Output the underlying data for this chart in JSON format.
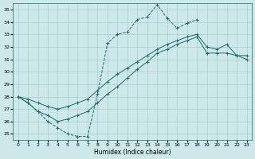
{
  "xlabel": "Humidex (Indice chaleur)",
  "bg_color": "#cce8e8",
  "grid_color": "#aacccc",
  "line_color": "#1a6b6b",
  "xlim": [
    -0.5,
    23.5
  ],
  "ylim": [
    24.5,
    35.5
  ],
  "yticks": [
    25,
    26,
    27,
    28,
    29,
    30,
    31,
    32,
    33,
    34,
    35
  ],
  "xticks": [
    0,
    1,
    2,
    3,
    4,
    5,
    6,
    7,
    8,
    9,
    10,
    11,
    12,
    13,
    14,
    15,
    16,
    17,
    18,
    19,
    20,
    21,
    22,
    23
  ],
  "line1_x": [
    0,
    1,
    2,
    3,
    4,
    5,
    6,
    7,
    8,
    9,
    10,
    11,
    12,
    13,
    14,
    15,
    16,
    17,
    18
  ],
  "line1_y": [
    28.0,
    27.5,
    26.8,
    26.0,
    25.5,
    25.0,
    24.8,
    24.8,
    28.2,
    32.3,
    33.0,
    33.2,
    34.2,
    34.4,
    35.4,
    34.3,
    33.5,
    33.9,
    34.2
  ],
  "line1_style": "--",
  "line2_x": [
    0,
    1,
    2,
    3,
    4,
    5,
    6,
    7,
    8,
    9,
    10,
    11,
    12,
    13,
    14,
    15,
    16,
    17,
    18,
    19,
    20,
    21,
    22,
    23
  ],
  "line2_y": [
    28.0,
    27.8,
    27.5,
    27.2,
    27.0,
    27.2,
    27.5,
    27.8,
    28.5,
    29.2,
    29.8,
    30.3,
    30.8,
    31.3,
    31.8,
    32.2,
    32.5,
    32.8,
    33.0,
    32.0,
    31.8,
    32.2,
    31.3,
    31.3
  ],
  "line2_style": "-",
  "line3_x": [
    0,
    1,
    2,
    3,
    4,
    5,
    6,
    7,
    8,
    9,
    10,
    11,
    12,
    13,
    14,
    15,
    16,
    17,
    18,
    19,
    20,
    21,
    22,
    23
  ],
  "line3_y": [
    28.0,
    27.5,
    26.8,
    26.5,
    26.0,
    26.2,
    26.5,
    26.8,
    27.5,
    28.2,
    28.8,
    29.5,
    30.2,
    30.8,
    31.5,
    31.8,
    32.2,
    32.5,
    32.8,
    31.5,
    31.5,
    31.5,
    31.3,
    31.0
  ],
  "line3_style": "-"
}
